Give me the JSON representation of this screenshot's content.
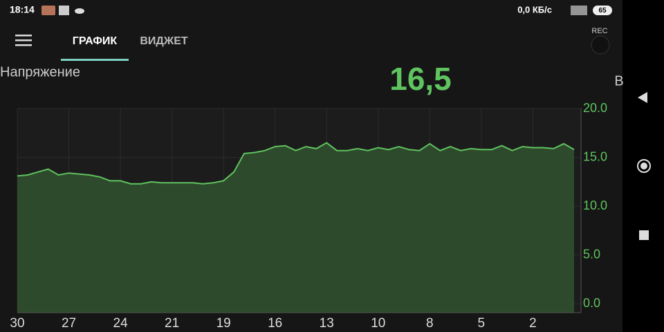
{
  "status_bar": {
    "time": "18:14",
    "network": "0,0 КБ/с",
    "battery": "65"
  },
  "tabs": [
    "ГРАФИК",
    "ВИДЖЕТ"
  ],
  "rec": "REC",
  "chart_data": {
    "type": "area",
    "title": "Напряжение",
    "current_value": "16,5",
    "unit": "В",
    "color": "#5fc35f",
    "fill": "#2e4a2c",
    "categories": [
      "30",
      null,
      null,
      null,
      null,
      "27",
      null,
      null,
      null,
      null,
      "24",
      null,
      null,
      null,
      null,
      "21",
      null,
      null,
      null,
      null,
      "19",
      null,
      null,
      null,
      null,
      "16",
      null,
      null,
      null,
      null,
      "13",
      null,
      null,
      null,
      null,
      "10",
      null,
      null,
      null,
      null,
      "8",
      null,
      null,
      null,
      null,
      "5",
      null,
      null,
      null,
      null,
      "2",
      null,
      null,
      null,
      null
    ],
    "values": [
      13.1,
      13.2,
      13.5,
      13.8,
      13.2,
      13.4,
      13.3,
      13.2,
      13.0,
      12.6,
      12.6,
      12.3,
      12.3,
      12.5,
      12.4,
      12.4,
      12.4,
      12.4,
      12.3,
      12.4,
      12.6,
      13.5,
      15.4,
      15.5,
      15.7,
      16.1,
      16.2,
      15.7,
      16.1,
      15.9,
      16.5,
      15.7,
      15.7,
      15.9,
      15.7,
      16.0,
      15.8,
      16.1,
      15.8,
      15.7,
      16.4,
      15.7,
      16.1,
      15.7,
      15.9,
      15.8,
      15.8,
      16.2,
      15.7,
      16.1,
      16.0,
      16.0,
      15.9,
      16.4,
      15.8
    ],
    "ylim": [
      -0.9,
      20.0
    ],
    "yticks": [
      {
        "value": 0,
        "label": "0.0"
      },
      {
        "value": 5,
        "label": "5.0"
      },
      {
        "value": 10,
        "label": "10.0"
      },
      {
        "value": 15,
        "label": "15.0"
      },
      {
        "value": 20,
        "label": "20.0"
      }
    ],
    "grid": true
  }
}
